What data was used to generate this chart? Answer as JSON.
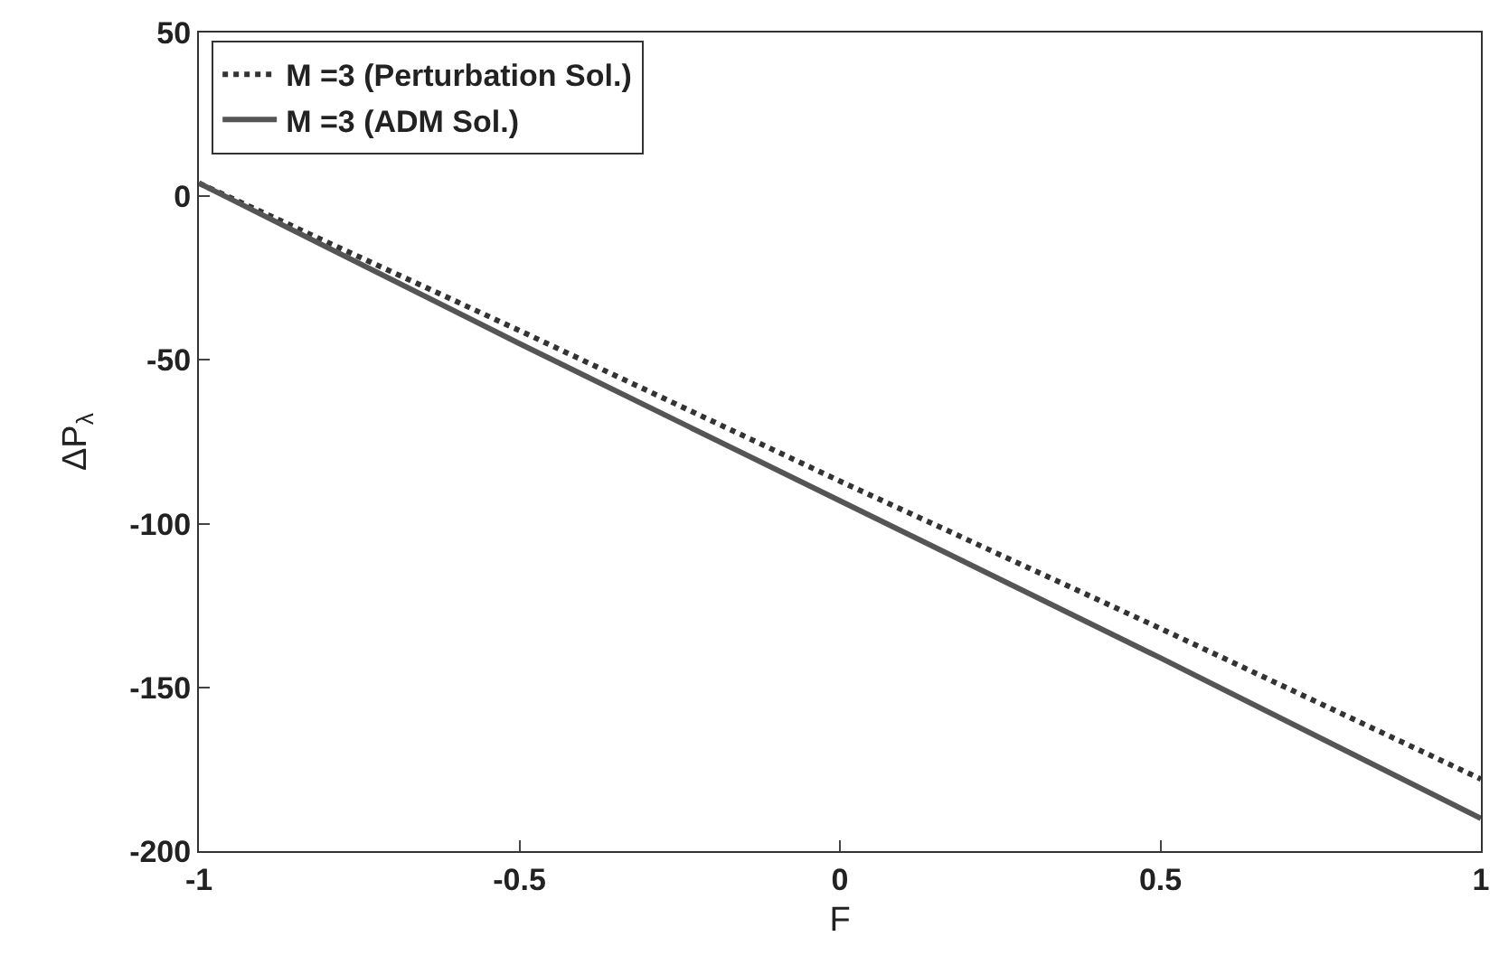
{
  "chart_data": {
    "type": "line",
    "xlabel": "F",
    "ylabel": "ΔP$_{λ}$",
    "x": [
      -1,
      -0.5,
      0,
      0.5,
      1
    ],
    "series": [
      {
        "name": "M =3 (Perturbation Sol.)",
        "color": "#333333",
        "line_style": "dotted",
        "values": [
          4,
          -41,
          -87,
          -132,
          -178
        ]
      },
      {
        "name": "M =3 (ADM Sol.)",
        "color": "#555555",
        "line_style": "solid",
        "values": [
          4,
          -45,
          -93,
          -141,
          -190
        ]
      }
    ],
    "xlim": [
      -1,
      1
    ],
    "xticks": [
      -1,
      -0.5,
      0,
      0.5,
      1
    ],
    "ylim": [
      -200,
      50
    ],
    "yticks": [
      -200,
      -150,
      -100,
      -50,
      0,
      50
    ],
    "grid": false,
    "legend": "top left",
    "marker": "none"
  }
}
